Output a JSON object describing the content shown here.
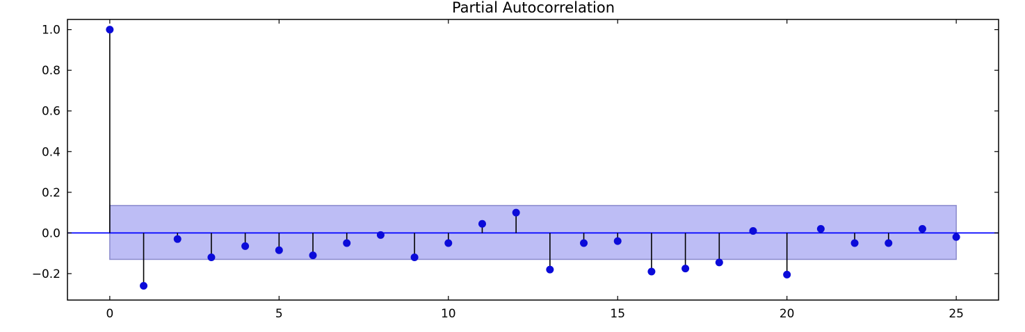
{
  "chart_data": {
    "type": "stem",
    "title": "Partial Autocorrelation",
    "xlabel": "",
    "ylabel": "",
    "xlim": [
      -1.25,
      26.25
    ],
    "ylim": [
      -0.33,
      1.05
    ],
    "x_ticks": [
      0,
      5,
      10,
      15,
      20,
      25
    ],
    "x_tick_labels": [
      "0",
      "5",
      "10",
      "15",
      "20",
      "25"
    ],
    "y_ticks": [
      1.0,
      0.8,
      0.6,
      0.4,
      0.2,
      0.0,
      -0.2
    ],
    "y_tick_labels": [
      "1.0",
      "0.8",
      "0.6",
      "0.4",
      "0.2",
      "0.0",
      "−0.2"
    ],
    "lags": [
      0,
      1,
      2,
      3,
      4,
      5,
      6,
      7,
      8,
      9,
      10,
      11,
      12,
      13,
      14,
      15,
      16,
      17,
      18,
      19,
      20,
      21,
      22,
      23,
      24,
      25
    ],
    "values": [
      1.0,
      -0.26,
      -0.03,
      -0.12,
      -0.065,
      -0.085,
      -0.11,
      -0.05,
      -0.01,
      -0.12,
      -0.05,
      0.045,
      0.1,
      -0.18,
      -0.05,
      -0.04,
      -0.19,
      -0.175,
      -0.145,
      0.01,
      -0.205,
      0.02,
      -0.05,
      -0.05,
      0.02,
      -0.02
    ],
    "confidence_band": {
      "x_range": [
        0,
        25
      ],
      "lower": -0.13,
      "upper": 0.135
    },
    "zero_line": 0,
    "grid": false,
    "colors": {
      "marker": "#0b0bd9",
      "stem": "#000000",
      "zero_line": "#0000ff",
      "band_fill": "#bdbdf5",
      "band_edge": "#8a8acc"
    }
  }
}
